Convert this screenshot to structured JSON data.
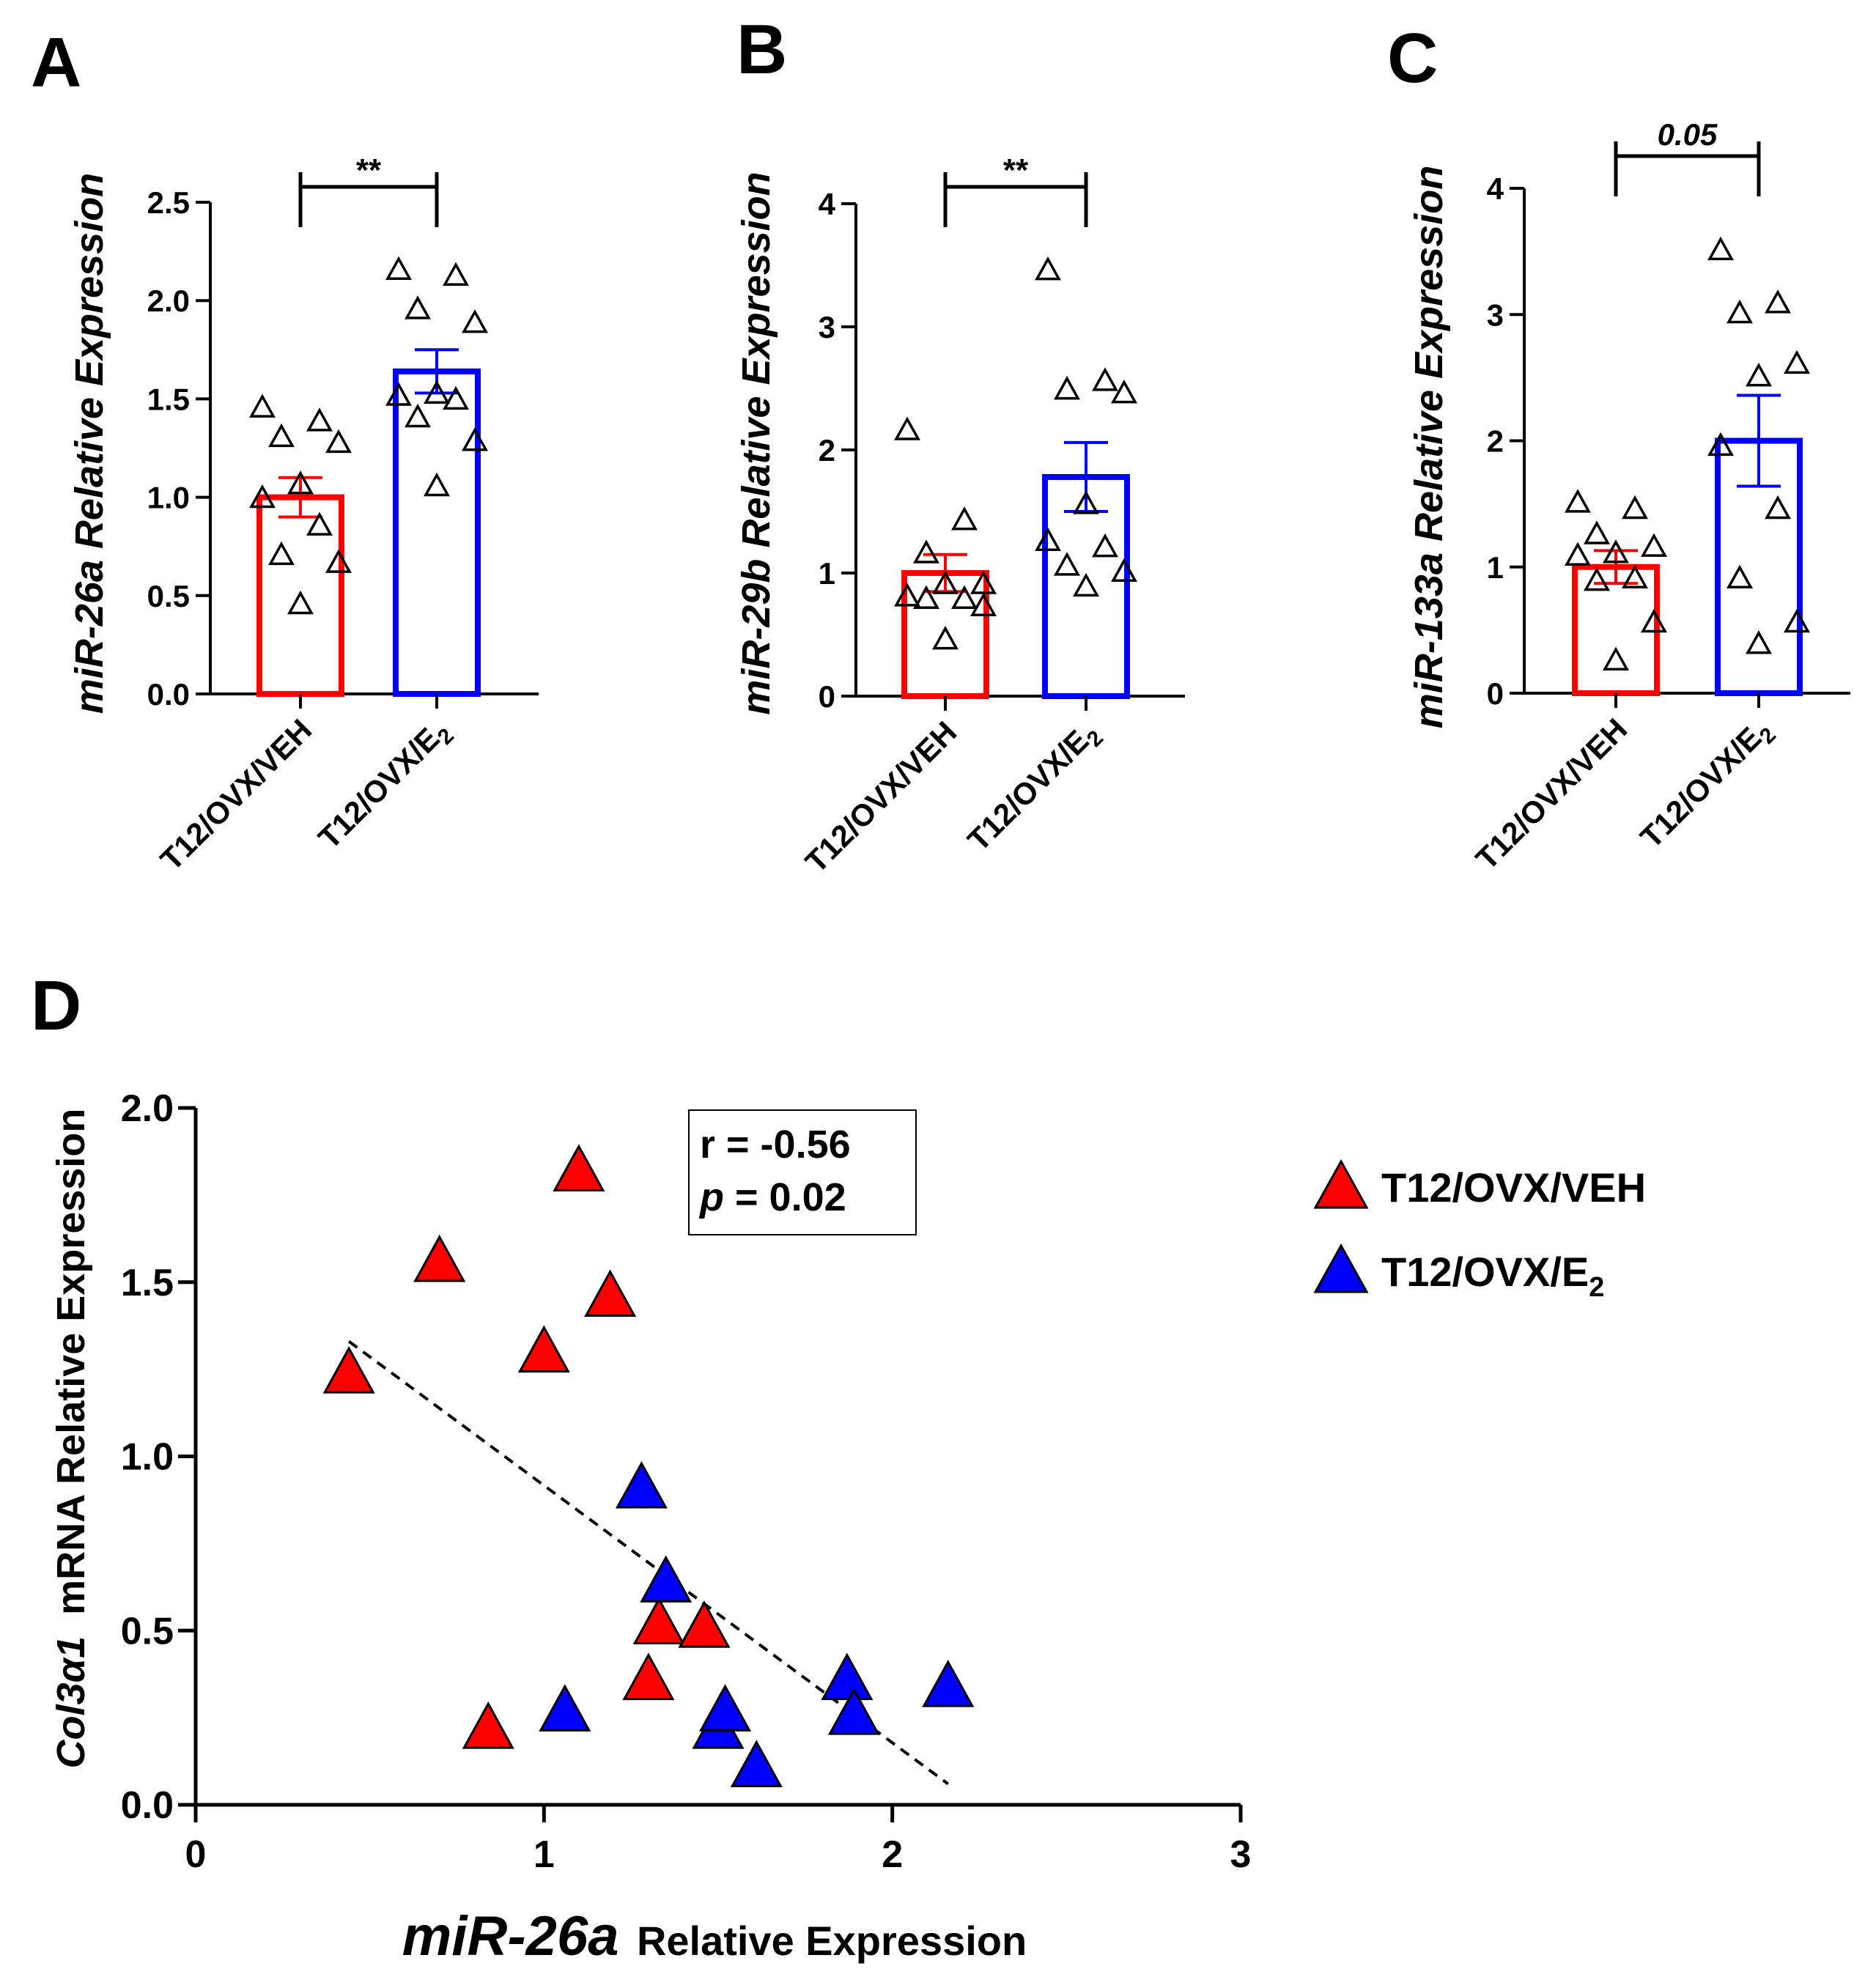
{
  "panel_labels": [
    "A",
    "B",
    "C",
    "D"
  ],
  "colors": {
    "veh": "#ff0000",
    "e2": "#0000ff",
    "axis": "#000000"
  },
  "chart_data": [
    {
      "panel": "A",
      "type": "bar",
      "ylabel": "miR-26a Relative Expression",
      "ylim": [
        0,
        2.5
      ],
      "yticks": [
        "0.0",
        "0.5",
        "1.0",
        "1.5",
        "2.0",
        "2.5"
      ],
      "categories": [
        {
          "label": "T12/OVX/VEH",
          "base": "T12/OVX/VEH",
          "sub": ""
        },
        {
          "label": "T12/OVX/E2",
          "base": "T12/OVX/E",
          "sub": "2"
        }
      ],
      "values": [
        1.0,
        1.64
      ],
      "sem": [
        0.1,
        0.11
      ],
      "points": [
        [
          1.45,
          1.38,
          1.3,
          1.27,
          1.06,
          0.99,
          0.85,
          0.7,
          0.66,
          0.45
        ],
        [
          2.15,
          2.12,
          1.95,
          1.88,
          1.52,
          1.51,
          1.49,
          1.4,
          1.28,
          1.05
        ]
      ],
      "significance": "**"
    },
    {
      "panel": "B",
      "type": "bar",
      "ylabel": "miR-29b Relative Expression",
      "ylim": [
        0,
        4
      ],
      "yticks": [
        "0",
        "1",
        "2",
        "3",
        "4"
      ],
      "categories": [
        {
          "label": "T12/OVX/VEH",
          "base": "T12/OVX/VEH",
          "sub": ""
        },
        {
          "label": "T12/OVX/E2",
          "base": "T12/OVX/E",
          "sub": "2"
        }
      ],
      "values": [
        1.0,
        1.78
      ],
      "sem": [
        0.15,
        0.28
      ],
      "points": [
        [
          2.15,
          1.42,
          1.15,
          0.9,
          0.9,
          0.8,
          0.78,
          0.78,
          0.72,
          0.45
        ],
        [
          3.45,
          2.55,
          2.48,
          2.45,
          1.55,
          1.25,
          1.2,
          1.05,
          1.0,
          0.88
        ]
      ],
      "significance": "**"
    },
    {
      "panel": "C",
      "type": "bar",
      "ylabel": "miR-133a Relative Expression",
      "ylim": [
        0,
        4
      ],
      "yticks": [
        "0",
        "1",
        "2",
        "3",
        "4"
      ],
      "categories": [
        {
          "label": "T12/OVX/VEH",
          "base": "T12/OVX/VEH",
          "sub": ""
        },
        {
          "label": "T12/OVX/E2",
          "base": "T12/OVX/E",
          "sub": "2"
        }
      ],
      "values": [
        1.0,
        2.0
      ],
      "sem": [
        0.13,
        0.36
      ],
      "points": [
        [
          1.5,
          1.45,
          1.25,
          1.15,
          1.1,
          1.08,
          0.9,
          0.88,
          0.55,
          0.25
        ],
        [
          3.5,
          3.08,
          3.0,
          2.6,
          2.5,
          1.95,
          1.45,
          0.9,
          0.55,
          0.38
        ]
      ],
      "significance": "0.05"
    },
    {
      "panel": "D",
      "type": "scatter",
      "xlabel_italic": "miR-26a",
      "xlabel_rest": "Relative Expression",
      "ylabel_italic": "Col3α1",
      "ylabel_rest": "mRNA Relative Expression",
      "xlim": [
        0,
        3
      ],
      "ylim": [
        0,
        2.0
      ],
      "xticks": [
        "0",
        "1",
        "2",
        "3"
      ],
      "yticks": [
        "0.0",
        "0.5",
        "1.0",
        "1.5",
        "2.0"
      ],
      "series": [
        {
          "name": "T12/OVX/VEH",
          "name_base": "T12/OVX/VEH",
          "name_sub": "",
          "color": "#ff0000",
          "points": [
            [
              0.44,
              1.23
            ],
            [
              0.7,
              1.55
            ],
            [
              0.84,
              0.21
            ],
            [
              1.0,
              1.29
            ],
            [
              1.1,
              1.81
            ],
            [
              1.19,
              1.45
            ],
            [
              1.3,
              0.35
            ],
            [
              1.33,
              0.51
            ],
            [
              1.46,
              0.5
            ]
          ]
        },
        {
          "name": "T12/OVX/E2",
          "name_base": "T12/OVX/E",
          "name_sub": "2",
          "color": "#0000ff",
          "points": [
            [
              1.06,
              0.26
            ],
            [
              1.28,
              0.9
            ],
            [
              1.35,
              0.63
            ],
            [
              1.5,
              0.21
            ],
            [
              1.52,
              0.26
            ],
            [
              1.61,
              0.1
            ],
            [
              1.87,
              0.35
            ],
            [
              1.89,
              0.25
            ],
            [
              2.16,
              0.33
            ]
          ]
        }
      ],
      "trendline": [
        [
          0.44,
          1.33
        ],
        [
          2.16,
          0.06
        ]
      ],
      "stats": {
        "r_text": "r = -0.56",
        "p_symbol": "p",
        "p_rest": " = 0.02"
      }
    }
  ]
}
